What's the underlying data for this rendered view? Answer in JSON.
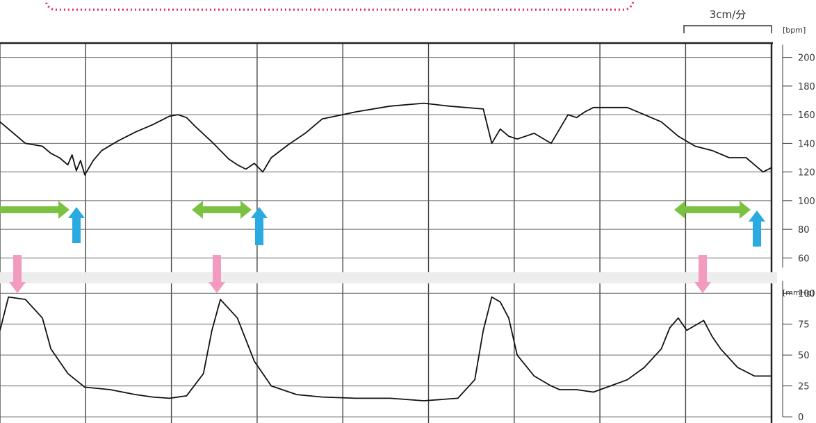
{
  "scale_label": "3cm/分",
  "colors": {
    "callout_border": "#e0224e",
    "green_arrow": "#7cc242",
    "blue_arrow": "#29abe2",
    "pink_arrow": "#f29bbf",
    "trace": "#111111",
    "band": "#ededed"
  },
  "chart_data": [
    {
      "type": "line",
      "name": "fetal-heart-rate",
      "ylabel": "[bpm]",
      "yticks": [
        60,
        80,
        100,
        120,
        140,
        160,
        180,
        200
      ],
      "ylim": [
        50,
        210
      ],
      "grid": true,
      "minutes_shown": 9.1,
      "x": [
        0,
        0.2,
        0.3,
        0.5,
        0.6,
        0.7,
        0.8,
        0.85,
        0.9,
        0.95,
        1.0,
        1.1,
        1.2,
        1.4,
        1.6,
        1.8,
        2.0,
        2.1,
        2.2,
        2.3,
        2.5,
        2.6,
        2.7,
        2.8,
        2.9,
        3.0,
        3.1,
        3.2,
        3.4,
        3.6,
        3.8,
        4.2,
        4.6,
        5.0,
        5.3,
        5.7,
        5.8,
        5.9,
        6.0,
        6.1,
        6.3,
        6.5,
        6.7,
        6.8,
        6.9,
        7.0,
        7.2,
        7.4,
        7.6,
        7.8,
        8.0,
        8.2,
        8.4,
        8.6,
        8.8,
        8.9,
        9.0,
        9.1
      ],
      "values": [
        155,
        145,
        140,
        138,
        133,
        130,
        125,
        132,
        121,
        128,
        118,
        128,
        135,
        142,
        148,
        153,
        159,
        160,
        158,
        152,
        141,
        135,
        129,
        125,
        122,
        126,
        120,
        130,
        139,
        147,
        157,
        162,
        166,
        168,
        166,
        164,
        140,
        150,
        145,
        143,
        147,
        140,
        160,
        158,
        162,
        165,
        165,
        165,
        160,
        155,
        145,
        138,
        135,
        130,
        130,
        125,
        120,
        123
      ]
    },
    {
      "type": "line",
      "name": "uterine-contraction",
      "ylabel": "[mmHg]",
      "yticks": [
        0,
        25,
        50,
        75,
        100
      ],
      "ylim": [
        0,
        105
      ],
      "grid": true,
      "minutes_shown": 9.1,
      "x": [
        0,
        0.1,
        0.3,
        0.5,
        0.6,
        0.8,
        1.0,
        1.3,
        1.6,
        1.8,
        2.0,
        2.2,
        2.4,
        2.5,
        2.6,
        2.8,
        3.0,
        3.2,
        3.5,
        3.8,
        4.2,
        4.6,
        5.0,
        5.4,
        5.6,
        5.7,
        5.8,
        5.9,
        6.0,
        6.1,
        6.3,
        6.5,
        6.6,
        6.8,
        7.0,
        7.2,
        7.4,
        7.6,
        7.8,
        7.9,
        8.0,
        8.1,
        8.3,
        8.4,
        8.5,
        8.7,
        8.9,
        9.1
      ],
      "values": [
        70,
        97,
        95,
        80,
        55,
        35,
        24,
        22,
        18,
        16,
        15,
        17,
        35,
        70,
        95,
        80,
        45,
        25,
        18,
        16,
        15,
        15,
        13,
        15,
        30,
        70,
        97,
        93,
        80,
        50,
        33,
        25,
        22,
        22,
        20,
        25,
        30,
        40,
        55,
        72,
        80,
        70,
        78,
        65,
        55,
        40,
        33,
        33
      ]
    }
  ],
  "callouts": {
    "green_double_arrows": 3,
    "blue_up_arrows": 3,
    "pink_down_arrows": 3
  }
}
